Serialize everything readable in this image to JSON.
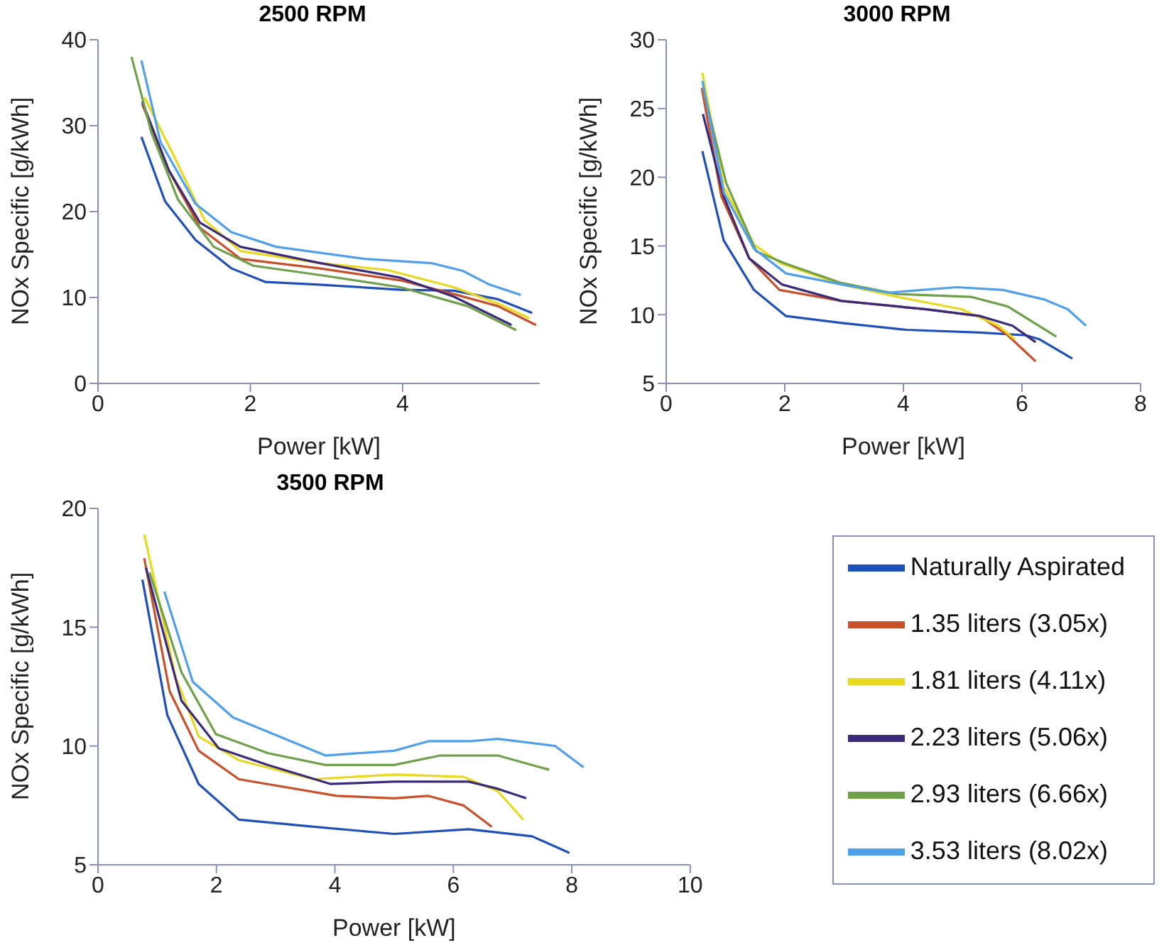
{
  "chart_data": [
    {
      "type": "line",
      "title": "2500 RPM",
      "xlabel": "Power [kW]",
      "ylabel": "NOx Specific [g/kWh]",
      "xlim": [
        0,
        5.8
      ],
      "xticks": [
        0,
        2,
        4
      ],
      "ylim": [
        0,
        40
      ],
      "yticks": [
        0,
        10,
        20,
        30,
        40
      ],
      "grid": false,
      "series": [
        {
          "color": "#1f4fb8",
          "x": [
            0.57,
            0.88,
            1.28,
            1.75,
            2.2,
            2.9,
            3.97,
            4.67,
            5.25,
            5.7
          ],
          "values": [
            28.7,
            21.2,
            16.7,
            13.4,
            11.8,
            11.5,
            10.9,
            10.8,
            9.8,
            8.2
          ]
        },
        {
          "color": "#c8502a",
          "x": [
            0.58,
            0.93,
            1.34,
            1.87,
            2.9,
            3.97,
            4.67,
            5.25,
            5.75
          ],
          "values": [
            32.5,
            24.8,
            18.1,
            14.5,
            13.4,
            12.0,
            10.4,
            9.0,
            6.8
          ]
        },
        {
          "color": "#e8d820",
          "x": [
            0.61,
            1.0,
            1.4,
            1.87,
            2.92,
            3.8,
            4.67,
            5.25,
            5.66
          ],
          "values": [
            33.3,
            26.4,
            19.0,
            15.4,
            14.0,
            13.2,
            11.2,
            9.3,
            7.6
          ]
        },
        {
          "color": "#3b2a7a",
          "x": [
            0.58,
            0.93,
            1.34,
            1.87,
            2.92,
            3.97,
            4.67,
            5.43
          ],
          "values": [
            32.8,
            24.8,
            18.7,
            15.9,
            14.0,
            12.3,
            10.1,
            6.8
          ]
        },
        {
          "color": "#6fa04a",
          "x": [
            0.44,
            0.7,
            1.05,
            1.52,
            2.04,
            2.92,
            3.97,
            4.85,
            5.49
          ],
          "values": [
            38.0,
            29.2,
            21.4,
            15.9,
            13.7,
            12.6,
            11.2,
            9.0,
            6.2
          ]
        },
        {
          "color": "#4fa0e8",
          "x": [
            0.57,
            0.82,
            1.28,
            1.75,
            2.34,
            3.5,
            4.38,
            4.79,
            5.14,
            5.55
          ],
          "values": [
            37.6,
            28.1,
            20.9,
            17.6,
            15.9,
            14.5,
            14.0,
            13.1,
            11.5,
            10.3
          ]
        }
      ]
    },
    {
      "type": "line",
      "title": "3000 RPM",
      "xlabel": "Power [kW]",
      "ylabel": "NOx Specific [g/kWh]",
      "xlim": [
        0,
        8
      ],
      "xticks": [
        0,
        2,
        4,
        6,
        8
      ],
      "ylim": [
        5,
        30
      ],
      "yticks": [
        5,
        10,
        15,
        20,
        25,
        30
      ],
      "grid": false,
      "series": [
        {
          "color": "#1f4fb8",
          "x": [
            0.61,
            0.97,
            1.48,
            2.02,
            2.96,
            4.05,
            5.29,
            6.07,
            6.3,
            6.85
          ],
          "values": [
            21.9,
            15.4,
            11.8,
            9.9,
            9.4,
            8.9,
            8.7,
            8.5,
            8.2,
            6.8
          ]
        },
        {
          "color": "#c8502a",
          "x": [
            0.6,
            0.93,
            1.4,
            1.91,
            2.96,
            4.36,
            5.29,
            5.76,
            6.23
          ],
          "values": [
            26.5,
            18.6,
            14.1,
            11.8,
            11.0,
            10.4,
            9.9,
            8.5,
            6.6
          ]
        },
        {
          "color": "#e8d820",
          "x": [
            0.61,
            0.97,
            1.48,
            1.95,
            2.96,
            3.89,
            4.98,
            5.6,
            5.88
          ],
          "values": [
            27.6,
            19.3,
            15.1,
            13.7,
            12.2,
            11.3,
            10.4,
            9.2,
            8.2
          ]
        },
        {
          "color": "#3b2a7a",
          "x": [
            0.62,
            0.97,
            1.4,
            1.95,
            2.96,
            4.36,
            5.29,
            5.84,
            6.23
          ],
          "values": [
            24.6,
            18.6,
            14.1,
            12.2,
            11.0,
            10.4,
            9.9,
            9.2,
            8.0
          ]
        },
        {
          "color": "#6fa04a",
          "x": [
            0.62,
            1.01,
            1.52,
            2.02,
            2.96,
            3.89,
            5.14,
            5.76,
            6.58
          ],
          "values": [
            26.5,
            19.6,
            14.6,
            13.7,
            12.3,
            11.5,
            11.3,
            10.6,
            8.4
          ]
        },
        {
          "color": "#4fa0e8",
          "x": [
            0.61,
            0.97,
            1.48,
            2.02,
            2.96,
            3.74,
            4.9,
            5.68,
            6.38,
            6.77,
            7.08
          ],
          "values": [
            27.0,
            18.9,
            14.8,
            13.0,
            12.2,
            11.6,
            12.0,
            11.8,
            11.1,
            10.4,
            9.2
          ]
        }
      ]
    },
    {
      "type": "line",
      "title": "3500 RPM",
      "xlabel": "Power [kW]",
      "ylabel": "NOx Specific [g/kWh]",
      "xlim": [
        0,
        10
      ],
      "xticks": [
        0,
        2,
        4,
        6,
        8,
        10
      ],
      "ylim": [
        5,
        20
      ],
      "yticks": [
        5,
        10,
        15,
        20
      ],
      "grid": false,
      "legend": "right",
      "series": [
        {
          "name": "Naturally Aspirated",
          "color": "#1f4fb8",
          "x": [
            0.75,
            1.17,
            1.7,
            2.38,
            3.64,
            5.0,
            6.26,
            7.33,
            7.96
          ],
          "values": [
            17.0,
            11.3,
            8.4,
            6.9,
            6.6,
            6.3,
            6.5,
            6.2,
            5.5
          ]
        },
        {
          "name": "1.35 liters (3.05x)",
          "color": "#c8502a",
          "x": [
            0.78,
            1.21,
            1.7,
            2.38,
            4.03,
            5.0,
            5.58,
            6.17,
            6.65
          ],
          "values": [
            17.9,
            12.3,
            9.8,
            8.6,
            7.9,
            7.8,
            7.9,
            7.5,
            6.6
          ]
        },
        {
          "name": "1.81 liters (4.11x)",
          "color": "#e8d820",
          "x": [
            0.78,
            1.31,
            1.7,
            2.38,
            3.64,
            5.0,
            6.17,
            6.75,
            7.18
          ],
          "values": [
            18.9,
            12.9,
            10.4,
            9.4,
            8.6,
            8.8,
            8.7,
            8.1,
            6.9
          ]
        },
        {
          "name": "2.23 liters (5.06x)",
          "color": "#3b2a7a",
          "x": [
            0.81,
            1.41,
            2.04,
            2.87,
            3.93,
            5.0,
            6.26,
            6.75,
            7.23
          ],
          "values": [
            17.5,
            11.9,
            9.9,
            9.2,
            8.4,
            8.5,
            8.5,
            8.2,
            7.8
          ]
        },
        {
          "name": "2.93 liters (6.66x)",
          "color": "#6fa04a",
          "x": [
            0.87,
            1.41,
            1.99,
            2.87,
            3.84,
            5.0,
            5.78,
            6.75,
            7.62
          ],
          "values": [
            17.3,
            13.1,
            10.5,
            9.7,
            9.2,
            9.2,
            9.6,
            9.6,
            9.0
          ]
        },
        {
          "name": "3.53 liters (8.02x)",
          "color": "#4fa0e8",
          "x": [
            1.12,
            1.6,
            2.28,
            3.06,
            3.84,
            5.0,
            5.58,
            6.26,
            6.75,
            7.72,
            8.2
          ],
          "values": [
            16.5,
            12.7,
            11.2,
            10.4,
            9.6,
            9.8,
            10.2,
            10.2,
            10.3,
            10.0,
            9.1
          ]
        }
      ]
    }
  ]
}
